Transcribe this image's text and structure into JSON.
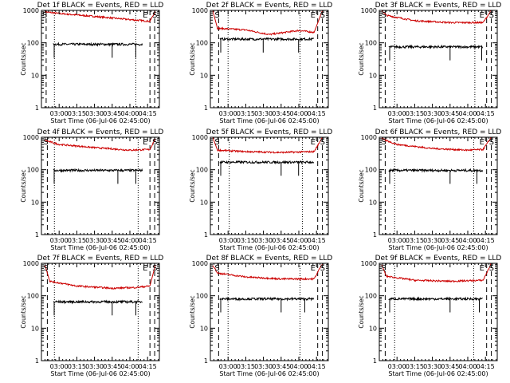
{
  "figure": {
    "ylabel": "Counts/sec",
    "xlabel": "Start Time (06-Jul-06 02:45:00)",
    "colors": {
      "events": "#000000",
      "lld": "#cc0000",
      "frame": "#000000"
    }
  },
  "chart_data": [
    {
      "type": "line",
      "title": "Det 1f BLACK = Events, RED = LLD",
      "x_ticks": [
        "03:00",
        "03:15",
        "03:30",
        "03:45",
        "04:00",
        "04:15"
      ],
      "y_ticks": [
        "1",
        "10",
        "100",
        "1000"
      ],
      "y_scale": "log",
      "ylim": [
        1,
        1000
      ],
      "xlim": [
        "02:45",
        "04:25"
      ],
      "xlabel": "Start Time (06-Jul-06 02:45:00)",
      "ylabel": "Counts/sec",
      "markers": {
        "S_left": "S",
        "E": "E",
        "S_right": "S"
      },
      "events_series": {
        "x_range": [
          "02:55",
          "04:11"
        ],
        "approx_level": 90,
        "spike_times": [
          "02:56",
          "03:45",
          "04:05"
        ]
      },
      "lld_series": {
        "x_range": [
          "02:48",
          "04:24"
        ],
        "points": [
          [
            "02:48",
            900
          ],
          [
            "03:00",
            800
          ],
          [
            "03:30",
            650
          ],
          [
            "04:00",
            520
          ],
          [
            "04:17",
            460
          ],
          [
            "04:22",
            1000
          ]
        ]
      },
      "vlines": {
        "dashed": [
          "02:49",
          "04:17",
          "04:21"
        ],
        "dotted": [
          "02:56",
          "04:05"
        ]
      }
    },
    {
      "type": "line",
      "title": "Det 2f BLACK = Events, RED = LLD",
      "x_ticks": [
        "03:00",
        "03:15",
        "03:30",
        "03:45",
        "04:00",
        "04:15"
      ],
      "y_ticks": [
        "1",
        "10",
        "100",
        "1000"
      ],
      "y_scale": "log",
      "ylim": [
        1,
        1000
      ],
      "xlim": [
        "02:45",
        "04:25"
      ],
      "xlabel": "Start Time (06-Jul-06 02:45:00)",
      "ylabel": "Counts/sec",
      "markers": {
        "S_left": "S",
        "E": "E",
        "S_right": "S"
      },
      "events_series": {
        "x_range": [
          "02:53",
          "04:13"
        ],
        "approx_level": 130,
        "spike_times": [
          "02:54",
          "03:30",
          "04:00"
        ]
      },
      "lld_series": {
        "x_range": [
          "02:47",
          "04:24"
        ],
        "points": [
          [
            "02:47",
            1000
          ],
          [
            "02:51",
            280
          ],
          [
            "03:15",
            250
          ],
          [
            "03:35",
            180
          ],
          [
            "04:00",
            240
          ],
          [
            "04:13",
            210
          ],
          [
            "04:20",
            1000
          ]
        ]
      },
      "vlines": {
        "dashed": [
          "02:52",
          "04:16",
          "04:20"
        ],
        "dotted": [
          "03:00",
          "04:01"
        ]
      }
    },
    {
      "type": "line",
      "title": "Det 3f BLACK = Events, RED = LLD",
      "x_ticks": [
        "03:00",
        "03:15",
        "03:30",
        "03:45",
        "04:00",
        "04:15"
      ],
      "y_ticks": [
        "1",
        "10",
        "100",
        "1000"
      ],
      "y_scale": "log",
      "ylim": [
        1,
        1000
      ],
      "xlim": [
        "02:45",
        "04:25"
      ],
      "xlabel": "Start Time (06-Jul-06 02:45:00)",
      "ylabel": "Counts/sec",
      "markers": {
        "S_left": "S",
        "E": "E",
        "S_right": "S"
      },
      "events_series": {
        "x_range": [
          "02:53",
          "04:13"
        ],
        "approx_level": 75,
        "spike_times": [
          "02:54",
          "03:45",
          "04:12"
        ]
      },
      "lld_series": {
        "x_range": [
          "02:47",
          "04:24"
        ],
        "points": [
          [
            "02:47",
            1000
          ],
          [
            "02:51",
            700
          ],
          [
            "03:15",
            480
          ],
          [
            "03:45",
            420
          ],
          [
            "04:13",
            420
          ],
          [
            "04:20",
            1000
          ]
        ]
      },
      "vlines": {
        "dashed": [
          "02:50",
          "04:16",
          "04:20"
        ],
        "dotted": [
          "02:58",
          "04:06"
        ]
      }
    },
    {
      "type": "line",
      "title": "Det 4f BLACK = Events, RED = LLD",
      "x_ticks": [
        "03:00",
        "03:15",
        "03:30",
        "03:45",
        "04:00",
        "04:15"
      ],
      "y_ticks": [
        "1",
        "10",
        "100",
        "1000"
      ],
      "y_scale": "log",
      "ylim": [
        1,
        1000
      ],
      "xlim": [
        "02:45",
        "04:25"
      ],
      "xlabel": "Start Time (06-Jul-06 02:45:00)",
      "ylabel": "Counts/sec",
      "markers": {
        "S_left": "S",
        "E": "E",
        "S_right": "S"
      },
      "events_series": {
        "x_range": [
          "02:55",
          "04:11"
        ],
        "approx_level": 95,
        "spike_times": [
          "02:56",
          "03:50",
          "04:05"
        ]
      },
      "lld_series": {
        "x_range": [
          "02:48",
          "04:24"
        ],
        "points": [
          [
            "02:48",
            800
          ],
          [
            "03:00",
            600
          ],
          [
            "03:30",
            480
          ],
          [
            "04:00",
            400
          ],
          [
            "04:17",
            420
          ],
          [
            "04:22",
            1000
          ]
        ]
      },
      "vlines": {
        "dashed": [
          "02:50",
          "04:17",
          "04:21"
        ],
        "dotted": [
          "02:56",
          "04:07"
        ]
      }
    },
    {
      "type": "line",
      "title": "Det 5f BLACK = Events, RED = LLD",
      "x_ticks": [
        "03:00",
        "03:15",
        "03:30",
        "03:45",
        "04:00",
        "04:15"
      ],
      "y_ticks": [
        "1",
        "10",
        "100",
        "1000"
      ],
      "y_scale": "log",
      "ylim": [
        1,
        1000
      ],
      "xlim": [
        "02:45",
        "04:25"
      ],
      "xlabel": "Start Time (06-Jul-06 02:45:00)",
      "ylabel": "Counts/sec",
      "markers": {
        "S_left": "S",
        "E": "E",
        "S_right": "S"
      },
      "events_series": {
        "x_range": [
          "02:53",
          "04:13"
        ],
        "approx_level": 170,
        "spike_times": [
          "02:54",
          "03:45",
          "04:00"
        ]
      },
      "lld_series": {
        "x_range": [
          "02:47",
          "04:24"
        ],
        "points": [
          [
            "02:47",
            1000
          ],
          [
            "02:51",
            400
          ],
          [
            "03:15",
            360
          ],
          [
            "03:45",
            340
          ],
          [
            "04:13",
            360
          ],
          [
            "04:20",
            1000
          ]
        ]
      },
      "vlines": {
        "dashed": [
          "02:52",
          "04:16",
          "04:20"
        ],
        "dotted": [
          "03:01",
          "04:03"
        ]
      }
    },
    {
      "type": "line",
      "title": "Det 6f BLACK = Events, RED = LLD",
      "x_ticks": [
        "03:00",
        "03:15",
        "03:30",
        "03:45",
        "04:00",
        "04:15"
      ],
      "y_ticks": [
        "1",
        "10",
        "100",
        "1000"
      ],
      "y_scale": "log",
      "ylim": [
        1,
        1000
      ],
      "xlim": [
        "02:45",
        "04:25"
      ],
      "xlabel": "Start Time (06-Jul-06 02:45:00)",
      "ylabel": "Counts/sec",
      "markers": {
        "S_left": "S",
        "E": "E",
        "S_right": "S"
      },
      "events_series": {
        "x_range": [
          "02:53",
          "04:13"
        ],
        "approx_level": 95,
        "spike_times": [
          "02:54",
          "03:45",
          "04:08"
        ]
      },
      "lld_series": {
        "x_range": [
          "02:47",
          "04:24"
        ],
        "points": [
          [
            "02:47",
            900
          ],
          [
            "03:00",
            600
          ],
          [
            "03:30",
            450
          ],
          [
            "04:00",
            400
          ],
          [
            "04:13",
            420
          ],
          [
            "04:20",
            1000
          ]
        ]
      },
      "vlines": {
        "dashed": [
          "02:50",
          "04:16",
          "04:20"
        ],
        "dotted": [
          "02:58",
          "04:05"
        ]
      }
    },
    {
      "type": "line",
      "title": "Det 7f BLACK = Events, RED = LLD",
      "x_ticks": [
        "03:00",
        "03:15",
        "03:30",
        "03:45",
        "04:00",
        "04:15"
      ],
      "y_ticks": [
        "1",
        "10",
        "100",
        "1000"
      ],
      "y_scale": "log",
      "ylim": [
        1,
        1000
      ],
      "xlim": [
        "02:45",
        "04:25"
      ],
      "xlabel": "Start Time (06-Jul-06 02:45:00)",
      "ylabel": "Counts/sec",
      "markers": {
        "S_left": "S",
        "E": "E",
        "S_right": "S"
      },
      "events_series": {
        "x_range": [
          "02:55",
          "04:11"
        ],
        "approx_level": 65,
        "spike_times": [
          "02:56",
          "03:45",
          "04:05"
        ]
      },
      "lld_series": {
        "x_range": [
          "02:48",
          "04:24"
        ],
        "points": [
          [
            "02:48",
            900
          ],
          [
            "02:52",
            280
          ],
          [
            "03:15",
            200
          ],
          [
            "03:45",
            170
          ],
          [
            "04:05",
            180
          ],
          [
            "04:17",
            200
          ],
          [
            "04:22",
            1000
          ]
        ]
      },
      "vlines": {
        "dashed": [
          "02:50",
          "04:17",
          "04:21"
        ],
        "dotted": [
          "02:56",
          "04:07"
        ]
      }
    },
    {
      "type": "line",
      "title": "Det 8f BLACK = Events, RED = LLD",
      "x_ticks": [
        "03:00",
        "03:15",
        "03:30",
        "03:45",
        "04:00",
        "04:15"
      ],
      "y_ticks": [
        "1",
        "10",
        "100",
        "1000"
      ],
      "y_scale": "log",
      "ylim": [
        1,
        1000
      ],
      "xlim": [
        "02:45",
        "04:25"
      ],
      "xlabel": "Start Time (06-Jul-06 02:45:00)",
      "ylabel": "Counts/sec",
      "markers": {
        "S_left": "S",
        "E": "E",
        "S_right": "S"
      },
      "events_series": {
        "x_range": [
          "02:53",
          "04:13"
        ],
        "approx_level": 80,
        "spike_times": [
          "02:54",
          "03:45",
          "04:05"
        ]
      },
      "lld_series": {
        "x_range": [
          "02:47",
          "04:24"
        ],
        "points": [
          [
            "02:47",
            900
          ],
          [
            "02:51",
            500
          ],
          [
            "03:15",
            380
          ],
          [
            "03:45",
            330
          ],
          [
            "04:13",
            330
          ],
          [
            "04:20",
            1000
          ]
        ]
      },
      "vlines": {
        "dashed": [
          "02:52",
          "04:16",
          "04:20"
        ],
        "dotted": [
          "03:00",
          "04:01"
        ]
      }
    },
    {
      "type": "line",
      "title": "Det 9f BLACK = Events, RED = LLD",
      "x_ticks": [
        "03:00",
        "03:15",
        "03:30",
        "03:45",
        "04:00",
        "04:15"
      ],
      "y_ticks": [
        "1",
        "10",
        "100",
        "1000"
      ],
      "y_scale": "log",
      "ylim": [
        1,
        1000
      ],
      "xlim": [
        "02:45",
        "04:25"
      ],
      "xlabel": "Start Time (06-Jul-06 02:45:00)",
      "ylabel": "Counts/sec",
      "markers": {
        "S_left": "S",
        "E": "E",
        "S_right": "S"
      },
      "events_series": {
        "x_range": [
          "02:53",
          "04:13"
        ],
        "approx_level": 80,
        "spike_times": [
          "02:54",
          "03:45",
          "04:10"
        ]
      },
      "lld_series": {
        "x_range": [
          "02:47",
          "04:24"
        ],
        "points": [
          [
            "02:47",
            900
          ],
          [
            "02:51",
            400
          ],
          [
            "03:15",
            300
          ],
          [
            "03:45",
            280
          ],
          [
            "04:13",
            300
          ],
          [
            "04:20",
            1000
          ]
        ]
      },
      "vlines": {
        "dashed": [
          "02:50",
          "04:16",
          "04:20"
        ],
        "dotted": [
          "02:58",
          "04:05"
        ]
      }
    }
  ]
}
